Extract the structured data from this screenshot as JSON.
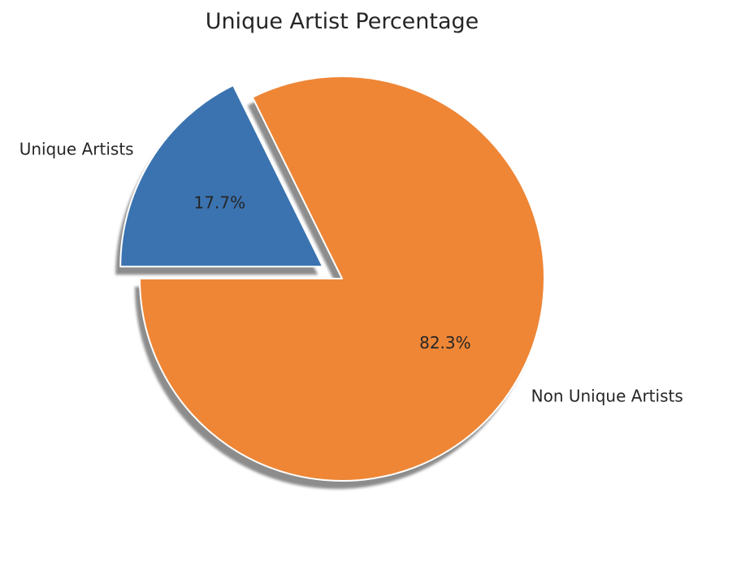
{
  "chart_data": {
    "type": "pie",
    "title": "Unique Artist Percentage",
    "slices": [
      {
        "label": "Non Unique Artists",
        "value": 82.3,
        "pct_text": "82.3%",
        "color": "#ee8636",
        "explode": false
      },
      {
        "label": "Unique Artists",
        "value": 17.7,
        "pct_text": "17.7%",
        "color": "#3a73b0",
        "explode": true
      }
    ],
    "shadow": true,
    "legend": "none"
  }
}
